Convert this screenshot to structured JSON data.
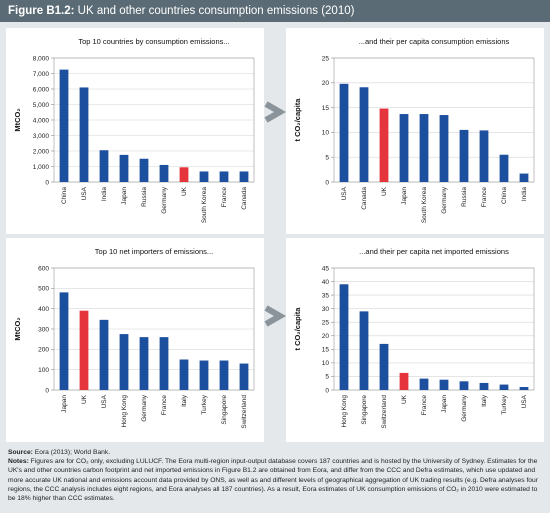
{
  "figure_label": "Figure B1.2:",
  "figure_title": "UK and other countries consumption emissions (2010)",
  "chart_data": [
    {
      "type": "bar",
      "title": "Top 10 countries by consumption emissions...",
      "y_label": "MtCO₂",
      "categories": [
        "China",
        "USA",
        "India",
        "Japan",
        "Russia",
        "Germany",
        "UK",
        "South Korea",
        "France",
        "Canada"
      ],
      "values": [
        7250,
        6100,
        2050,
        1750,
        1500,
        1100,
        950,
        680,
        680,
        680
      ],
      "colors": [
        "#1d4f9f",
        "#1d4f9f",
        "#1d4f9f",
        "#1d4f9f",
        "#1d4f9f",
        "#1d4f9f",
        "#e5343c",
        "#1d4f9f",
        "#1d4f9f",
        "#1d4f9f"
      ],
      "ylim": [
        0,
        8000
      ],
      "yticks": [
        0,
        {
          "value": 1000,
          "label": "1,000"
        },
        {
          "value": 2000,
          "label": "2,000"
        },
        {
          "value": 3000,
          "label": "3,000"
        },
        {
          "value": 4000,
          "label": "4,000"
        },
        {
          "value": 5000,
          "label": "5,000"
        },
        {
          "value": 6000,
          "label": "6,000"
        },
        {
          "value": 7000,
          "label": "7,000"
        },
        {
          "value": 8000,
          "label": "8,000"
        }
      ],
      "grid": true
    },
    {
      "type": "bar",
      "title": "...and their per capita consumption emissions",
      "y_label": "t CO₂/capita",
      "categories": [
        "USA",
        "Canada",
        "UK",
        "Japan",
        "South Korea",
        "Germany",
        "Russia",
        "France",
        "China",
        "India"
      ],
      "values": [
        19.8,
        19.1,
        14.8,
        13.7,
        13.7,
        13.5,
        10.5,
        10.4,
        5.5,
        1.7
      ],
      "colors": [
        "#1d4f9f",
        "#1d4f9f",
        "#e5343c",
        "#1d4f9f",
        "#1d4f9f",
        "#1d4f9f",
        "#1d4f9f",
        "#1d4f9f",
        "#1d4f9f",
        "#1d4f9f"
      ],
      "ylim": [
        0,
        25
      ],
      "yticks": [
        0,
        5,
        10,
        15,
        20,
        25
      ],
      "grid": true
    },
    {
      "type": "bar",
      "title": "Top 10 net importers of emissions...",
      "y_label": "MtCO₂",
      "categories": [
        "Japan",
        "UK",
        "USA",
        "Hong Kong",
        "Germany",
        "France",
        "Italy",
        "Turkey",
        "Singapore",
        "Switzerland"
      ],
      "values": [
        480,
        390,
        345,
        275,
        260,
        260,
        150,
        145,
        145,
        130
      ],
      "colors": [
        "#1d4f9f",
        "#e5343c",
        "#1d4f9f",
        "#1d4f9f",
        "#1d4f9f",
        "#1d4f9f",
        "#1d4f9f",
        "#1d4f9f",
        "#1d4f9f",
        "#1d4f9f"
      ],
      "ylim": [
        0,
        600
      ],
      "yticks": [
        0,
        100,
        200,
        300,
        400,
        500,
        600
      ],
      "grid": true
    },
    {
      "type": "bar",
      "title": "...and their per capita net imported emissions",
      "y_label": "t CO₂/capita",
      "categories": [
        "Hong Kong",
        "Singapore",
        "Switzerland",
        "UK",
        "France",
        "Japan",
        "Germany",
        "Italy",
        "Turkey",
        "USA"
      ],
      "values": [
        39,
        29,
        17,
        6.3,
        4.2,
        3.8,
        3.2,
        2.6,
        2.0,
        1.1
      ],
      "colors": [
        "#1d4f9f",
        "#1d4f9f",
        "#1d4f9f",
        "#e5343c",
        "#1d4f9f",
        "#1d4f9f",
        "#1d4f9f",
        "#1d4f9f",
        "#1d4f9f",
        "#1d4f9f"
      ],
      "ylim": [
        0,
        45
      ],
      "yticks": [
        0,
        5,
        10,
        15,
        20,
        25,
        30,
        35,
        40,
        45
      ],
      "grid": true
    }
  ],
  "source_label": "Source:",
  "source_text": "Eora (2013); World Bank.",
  "notes_label": "Notes:",
  "notes_text": "Figures are for CO₂ only, excluding LULUCF. The Eora multi-region input-output database covers 187 countries and is hosted by the University of Sydney. Estimates for the UK's and other countries carbon footprint and net imported emissions in Figure B1.2 are obtained from Eora, and differ from the CCC and Defra estimates, which use updated and more accurate UK national and emissions account data provided by ONS, as well as and different levels of geographical aggregation of UK trading results (e.g. Defra analyses four regions, the CCC analysis includes eight regions, and Eora analyses all 187 countries). As a result, Eora estimates of UK consumption emissions of CO₂ in 2010 were estimated to be 18% higher than CCC estimates."
}
